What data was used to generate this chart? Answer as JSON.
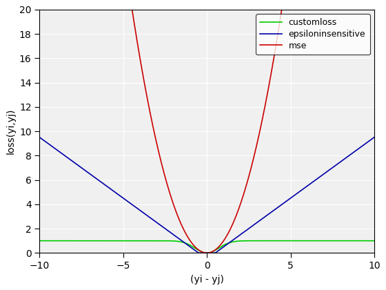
{
  "xlabel": "(yi - yj)",
  "ylabel": "loss(yi,yj)",
  "xlim": [
    -10,
    10
  ],
  "ylim": [
    0,
    20
  ],
  "x_ticks": [
    -10,
    -5,
    0,
    5,
    10
  ],
  "y_ticks": [
    0,
    2,
    4,
    6,
    8,
    10,
    12,
    14,
    16,
    18,
    20
  ],
  "epsilon": 0.5,
  "legend_labels": [
    "customloss",
    "epsiloninsensitive",
    "mse"
  ],
  "line_colors": [
    "#00cc00",
    "#0000aa",
    "#cc0000"
  ],
  "line_width": 1.2,
  "figsize": [
    5.6,
    4.2
  ],
  "dpi": 100,
  "axes_facecolor": "#f0f0f0",
  "figure_facecolor": "#ffffff",
  "grid_color": "#ffffff",
  "axes_edgecolor": "#000000",
  "tick_label_fontsize": 10,
  "axis_label_fontsize": 10,
  "legend_fontsize": 9
}
